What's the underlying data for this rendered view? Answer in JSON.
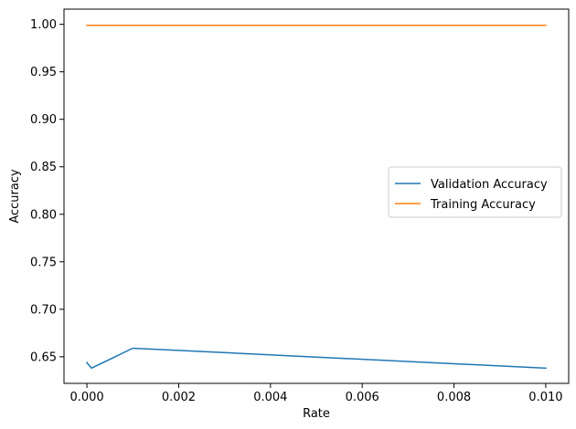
{
  "chart_data": {
    "type": "line",
    "xlabel": "Rate",
    "ylabel": "Accuracy",
    "xlim": [
      -0.0005,
      0.0105
    ],
    "ylim": [
      0.622,
      1.016
    ],
    "xticks": [
      0.0,
      0.002,
      0.004,
      0.006,
      0.008,
      0.01
    ],
    "xtick_labels": [
      "0.000",
      "0.002",
      "0.004",
      "0.006",
      "0.008",
      "0.010"
    ],
    "yticks": [
      0.65,
      0.7,
      0.75,
      0.8,
      0.85,
      0.9,
      0.95,
      1.0
    ],
    "ytick_labels": [
      "0.65",
      "0.70",
      "0.75",
      "0.80",
      "0.85",
      "0.90",
      "0.95",
      "1.00"
    ],
    "grid": false,
    "legend": "center-right",
    "series": [
      {
        "name": "Validation Accuracy",
        "color": "#1f77b4",
        "x": [
          0.0,
          1e-05,
          0.0001,
          0.001,
          0.01
        ],
        "y": [
          0.644,
          0.643,
          0.638,
          0.659,
          0.638
        ]
      },
      {
        "name": "Training Accuracy",
        "color": "#ff7f0e",
        "x": [
          0.0,
          1e-05,
          0.0001,
          0.001,
          0.01
        ],
        "y": [
          0.999,
          0.999,
          0.999,
          0.999,
          0.999
        ]
      }
    ]
  }
}
